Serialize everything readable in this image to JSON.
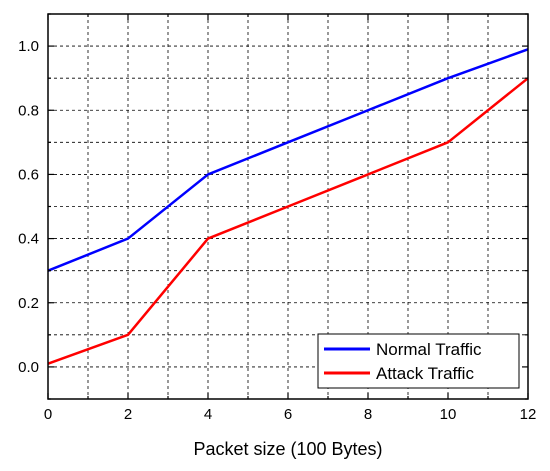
{
  "chart_data": {
    "type": "line",
    "title": "",
    "xlabel": "Packet size (100 Bytes)",
    "ylabel": "",
    "xlim": [
      0,
      12
    ],
    "ylim": [
      -0.1,
      1.1
    ],
    "x_ticks": [
      0,
      2,
      4,
      6,
      8,
      10,
      12
    ],
    "x_tick_labels": [
      "0",
      "2",
      "4",
      "6",
      "8",
      "10",
      "12"
    ],
    "y_ticks": [
      0.0,
      0.2,
      0.4,
      0.6,
      0.8,
      1.0
    ],
    "y_tick_labels": [
      "0.0",
      "0.2",
      "0.4",
      "0.6",
      "0.8",
      "1.0"
    ],
    "grid": true,
    "legend_position": "bottom-right",
    "series": [
      {
        "name": "Normal Traffic",
        "color": "#0000ff",
        "x": [
          0,
          2,
          4,
          6,
          8,
          10,
          12
        ],
        "y": [
          0.3,
          0.4,
          0.6,
          0.7,
          0.8,
          0.9,
          0.99
        ]
      },
      {
        "name": "Attack Traffic",
        "color": "#ff0000",
        "x": [
          0,
          2,
          4,
          6,
          8,
          10,
          12
        ],
        "y": [
          0.01,
          0.1,
          0.4,
          0.5,
          0.6,
          0.7,
          0.9
        ]
      }
    ]
  }
}
